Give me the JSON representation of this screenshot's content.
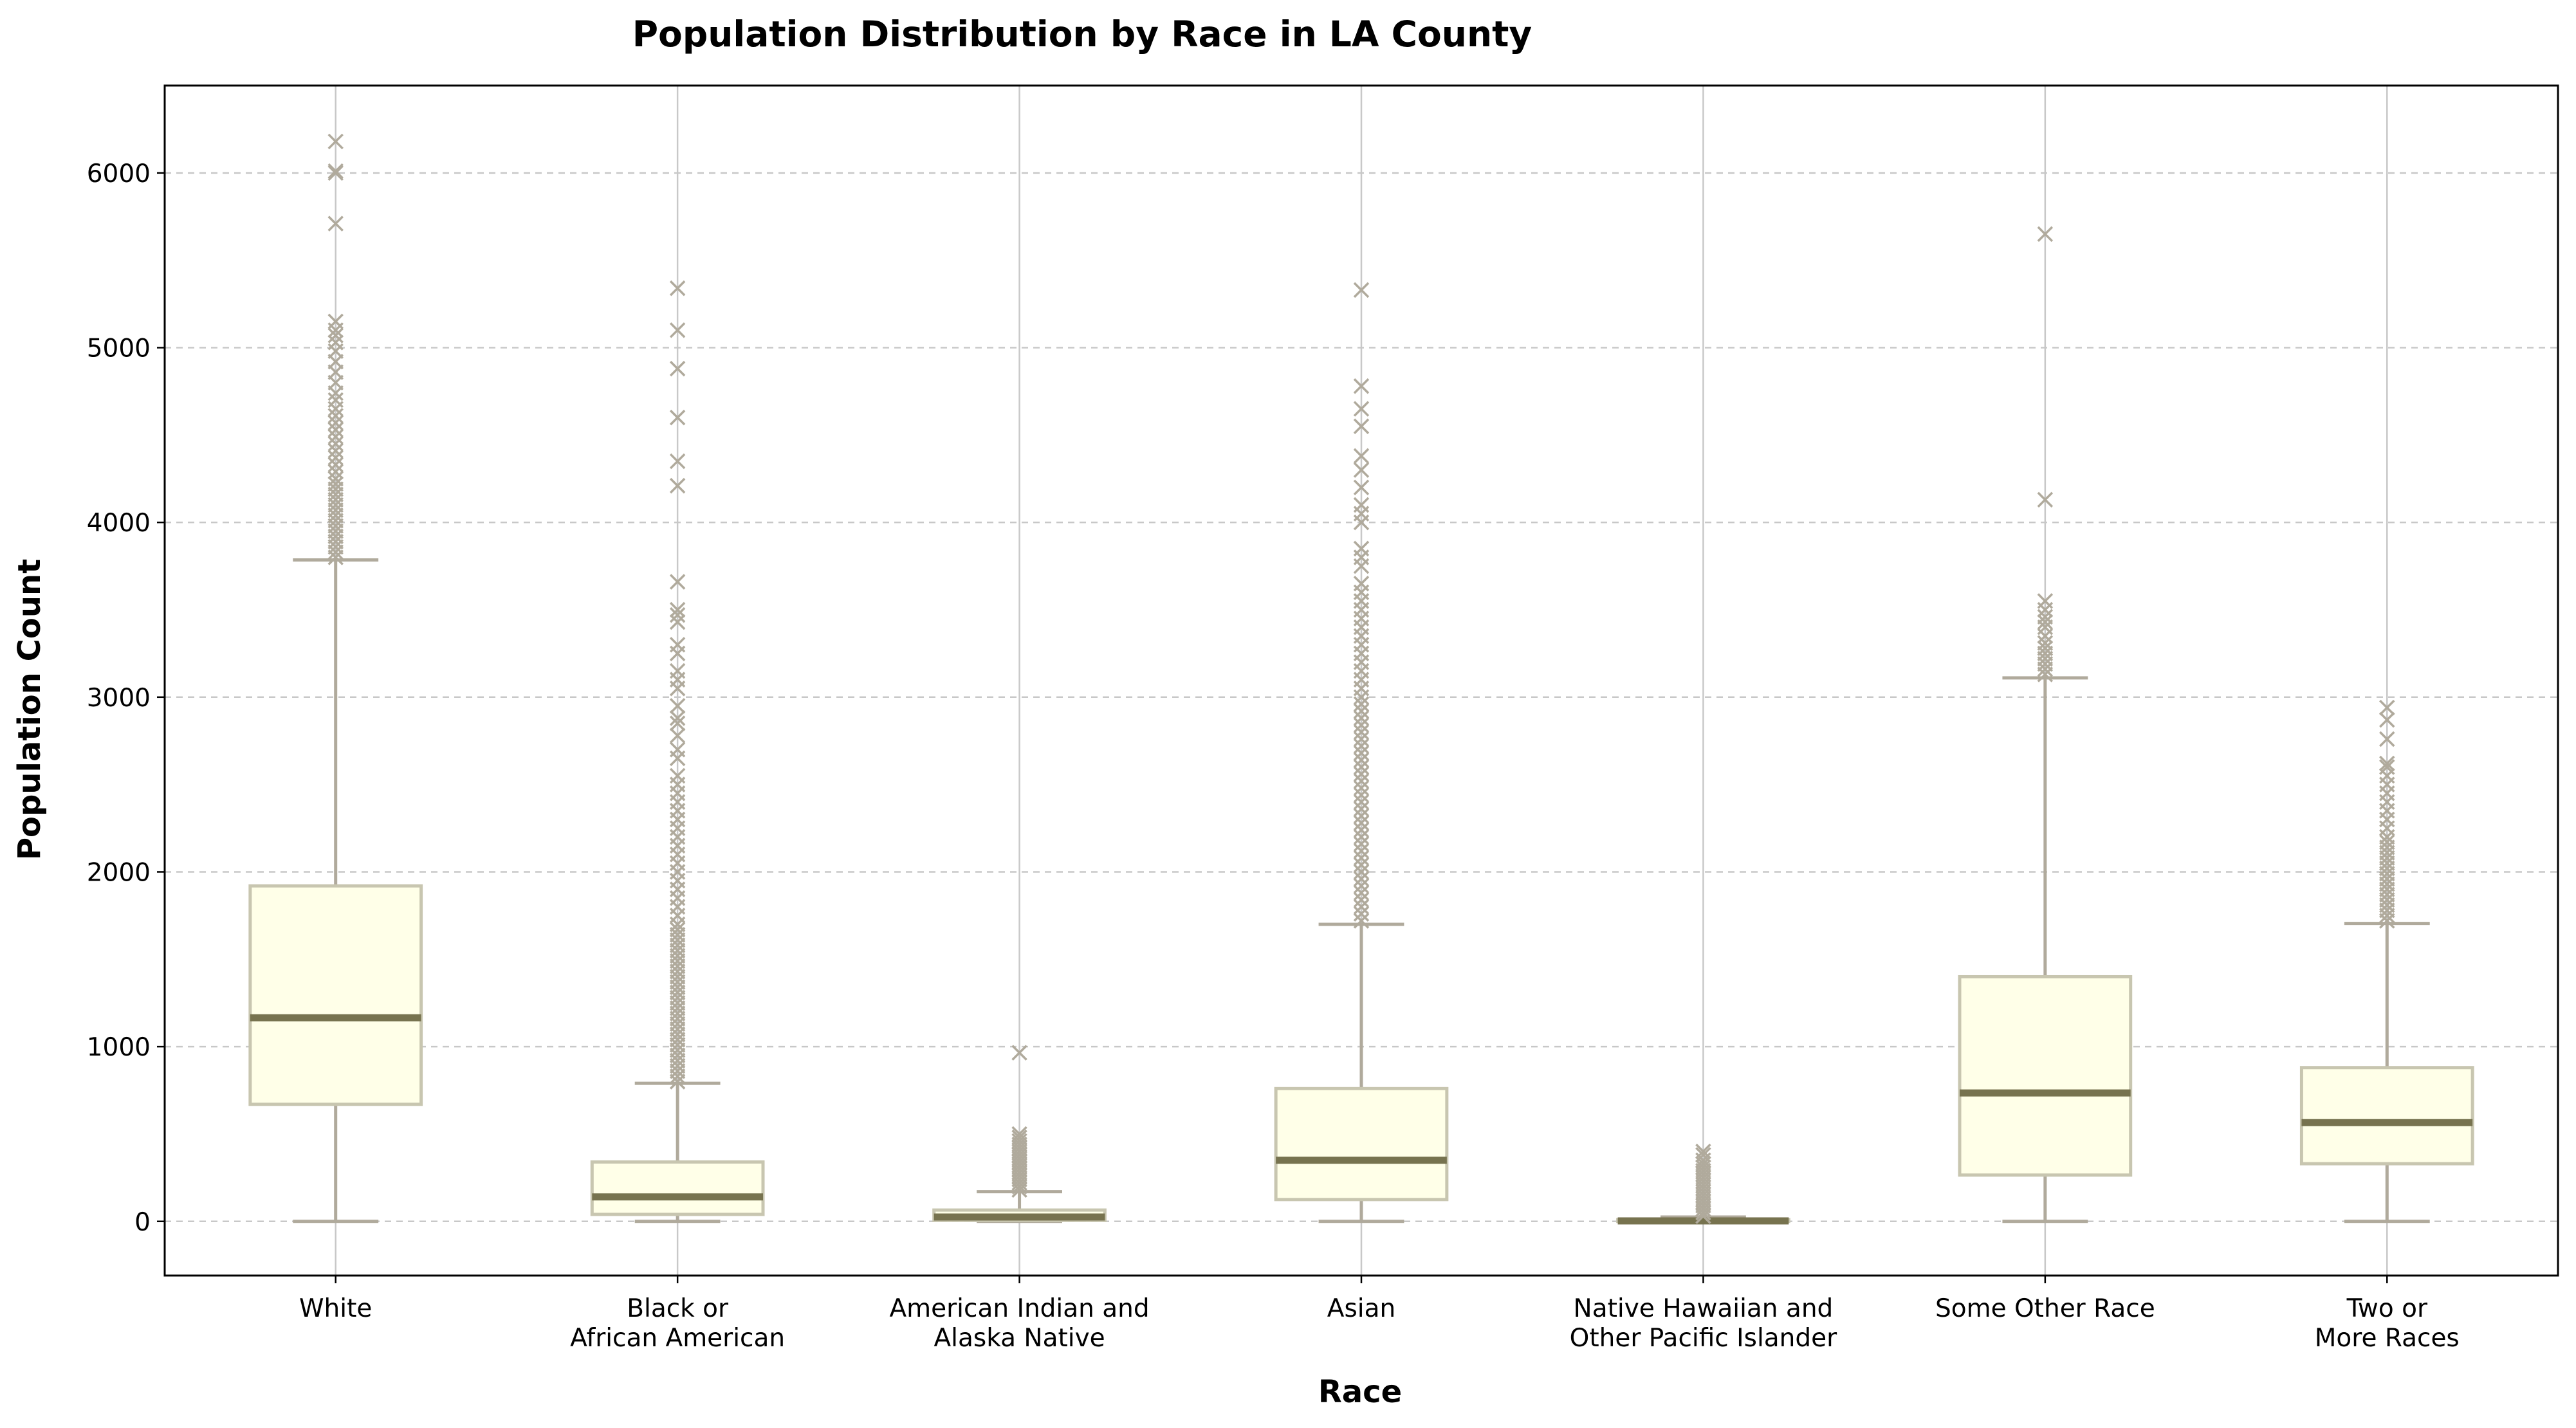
{
  "chart_data": {
    "type": "boxplot",
    "title": "Population Distribution by Race in LA County",
    "xlabel": "Race",
    "ylabel": "Population Count",
    "ylim": [
      -310,
      6500
    ],
    "yticks": [
      0,
      1000,
      2000,
      3000,
      4000,
      5000,
      6000
    ],
    "grid": "horizontal dashed + vertical solid at categories",
    "colors": {
      "box_fill": "#FFFFE8",
      "box_edge": "#C8C6B0",
      "median": "#77734F",
      "whisker": "#B0AA9C",
      "outlier": "#B0AA9C",
      "grid": "#C8C8C8"
    },
    "categories": [
      {
        "label_lines": [
          "White"
        ],
        "whisker_low": 0,
        "q1": 670,
        "median": 1165,
        "q3": 1920,
        "whisker_high": 3785,
        "outliers": [
          3800,
          3830,
          3860,
          3890,
          3920,
          3950,
          3980,
          4010,
          4040,
          4070,
          4100,
          4130,
          4160,
          4190,
          4220,
          4250,
          4290,
          4330,
          4370,
          4410,
          4450,
          4490,
          4530,
          4570,
          4610,
          4650,
          4700,
          4740,
          4800,
          4860,
          4920,
          4980,
          5030,
          5070,
          5100,
          5150,
          5710,
          6000,
          6010,
          6180
        ]
      },
      {
        "label_lines": [
          "Black or",
          "African American"
        ],
        "whisker_low": 0,
        "q1": 40,
        "median": 140,
        "q3": 340,
        "whisker_high": 790,
        "outliers": [
          800,
          830,
          860,
          890,
          920,
          950,
          980,
          1010,
          1040,
          1070,
          1100,
          1130,
          1160,
          1190,
          1220,
          1250,
          1280,
          1310,
          1340,
          1370,
          1400,
          1430,
          1460,
          1490,
          1520,
          1550,
          1580,
          1610,
          1640,
          1670,
          1700,
          1750,
          1800,
          1850,
          1900,
          1950,
          2000,
          2050,
          2100,
          2150,
          2200,
          2250,
          2300,
          2350,
          2400,
          2450,
          2500,
          2550,
          2650,
          2700,
          2780,
          2850,
          2880,
          2950,
          3050,
          3100,
          3150,
          3250,
          3300,
          3430,
          3470,
          3500,
          3660,
          4210,
          4350,
          4600,
          4880,
          5100,
          5340
        ]
      },
      {
        "label_lines": [
          "American Indian and",
          "Alaska Native"
        ],
        "whisker_low": 0,
        "q1": 5,
        "median": 25,
        "q3": 65,
        "whisker_high": 170,
        "outliers": [
          180,
          200,
          220,
          240,
          260,
          280,
          300,
          320,
          340,
          360,
          380,
          400,
          420,
          440,
          460,
          480,
          500,
          965
        ]
      },
      {
        "label_lines": [
          "Asian"
        ],
        "whisker_low": 0,
        "q1": 125,
        "median": 350,
        "q3": 760,
        "whisker_high": 1700,
        "outliers": [
          1720,
          1760,
          1800,
          1840,
          1880,
          1920,
          1960,
          2000,
          2040,
          2080,
          2120,
          2160,
          2200,
          2240,
          2280,
          2320,
          2360,
          2400,
          2440,
          2480,
          2520,
          2560,
          2600,
          2640,
          2680,
          2720,
          2760,
          2800,
          2840,
          2880,
          2920,
          2960,
          3000,
          3050,
          3100,
          3150,
          3200,
          3250,
          3300,
          3350,
          3400,
          3450,
          3500,
          3550,
          3600,
          3650,
          3750,
          3800,
          3850,
          4000,
          4050,
          4100,
          4200,
          4300,
          4380,
          4550,
          4650,
          4780,
          5330
        ]
      },
      {
        "label_lines": [
          "Native Hawaiian and",
          "Other Pacific Islander"
        ],
        "whisker_low": 0,
        "q1": 0,
        "median": 3,
        "q3": 10,
        "whisker_high": 25,
        "outliers": [
          30,
          50,
          70,
          90,
          110,
          130,
          150,
          170,
          190,
          210,
          230,
          250,
          270,
          290,
          310,
          330,
          350,
          380,
          400
        ]
      },
      {
        "label_lines": [
          "Some Other Race"
        ],
        "whisker_low": 0,
        "q1": 265,
        "median": 735,
        "q3": 1400,
        "whisker_high": 3110,
        "outliers": [
          3130,
          3160,
          3190,
          3220,
          3250,
          3280,
          3310,
          3350,
          3400,
          3430,
          3460,
          3500,
          3550,
          4130,
          5650
        ]
      },
      {
        "label_lines": [
          "Two or",
          "More Races"
        ],
        "whisker_low": 0,
        "q1": 330,
        "median": 565,
        "q3": 880,
        "whisker_high": 1705,
        "outliers": [
          1720,
          1750,
          1780,
          1810,
          1840,
          1870,
          1900,
          1930,
          1960,
          1990,
          2020,
          2050,
          2080,
          2110,
          2140,
          2170,
          2200,
          2250,
          2300,
          2350,
          2400,
          2450,
          2500,
          2550,
          2600,
          2620,
          2760,
          2870,
          2940
        ]
      }
    ]
  }
}
